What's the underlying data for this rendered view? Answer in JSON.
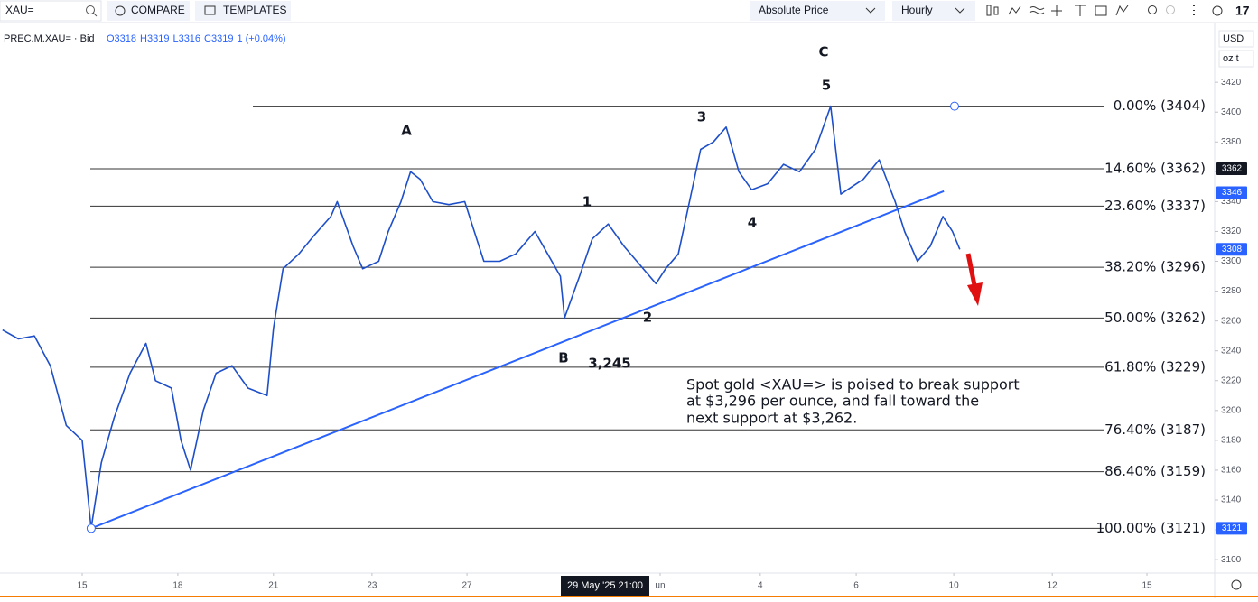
{
  "toolbar": {
    "symbol": "XAU=",
    "compare": "COMPARE",
    "templates": "TEMPLATES",
    "price_mode": "Absolute Price",
    "interval": "Hourly"
  },
  "chart_data": {
    "type": "line",
    "legend": {
      "name": "PREC.M.XAU= · Bid",
      "ohlc": [
        "O3318",
        "H3319",
        "L3316",
        "C3319",
        "1 (+0.04%)"
      ]
    },
    "currency": "USD",
    "unit": "oz t",
    "x": [
      -2.5,
      -2.0,
      -1.5,
      -1.0,
      -0.5,
      0.0,
      0.28,
      0.6,
      1.0,
      1.5,
      2.0,
      2.3,
      2.8,
      3.1,
      3.4,
      3.8,
      4.2,
      4.7,
      5.2,
      5.8,
      6.0,
      6.3,
      6.8,
      7.3,
      7.8,
      8.0,
      8.5,
      8.8,
      9.3,
      9.6,
      10.0,
      10.3,
      10.6,
      11.0,
      11.5,
      12.0,
      12.3,
      12.6,
      13.1,
      13.6,
      14.2,
      14.6,
      15.0,
      15.13,
      15.6,
      16.0,
      16.5,
      17.0,
      17.4,
      18.0,
      18.3,
      18.7,
      19.0,
      19.4,
      19.8,
      20.2,
      20.6,
      21.0,
      21.5,
      22.0,
      22.5,
      23.0,
      23.48,
      23.8,
      24.5,
      25.0,
      25.5,
      25.8,
      26.2,
      26.6,
      27.0,
      27.3,
      27.53
    ],
    "series": [
      {
        "name": "PREC.M.XAU= · Bid",
        "color": "#1e4fc9",
        "values": [
          3254,
          3248,
          3250,
          3230,
          3190,
          3180,
          3121,
          3165,
          3195,
          3225,
          3245,
          3220,
          3215,
          3180,
          3160,
          3200,
          3225,
          3230,
          3215,
          3210,
          3255,
          3295,
          3305,
          3318,
          3330,
          3340,
          3310,
          3295,
          3300,
          3320,
          3340,
          3360,
          3355,
          3340,
          3338,
          3340,
          3320,
          3300,
          3300,
          3305,
          3320,
          3305,
          3290,
          3262,
          3290,
          3315,
          3325,
          3310,
          3300,
          3285,
          3295,
          3305,
          3335,
          3375,
          3380,
          3390,
          3360,
          3348,
          3352,
          3365,
          3360,
          3375,
          3404,
          3345,
          3355,
          3368,
          3340,
          3320,
          3300,
          3310,
          3330,
          3320,
          3308
        ]
      }
    ],
    "xlim": [
      -2.578,
      35.524
    ],
    "xticks": [
      {
        "value": 0,
        "label": "15"
      },
      {
        "value": 3,
        "label": "18"
      },
      {
        "value": 6,
        "label": "21"
      },
      {
        "value": 9.09,
        "label": "23"
      },
      {
        "value": 12.07,
        "label": "27"
      },
      {
        "value": 18.13,
        "label": "un"
      },
      {
        "value": 21.27,
        "label": "4"
      },
      {
        "value": 24.28,
        "label": "6"
      },
      {
        "value": 27.34,
        "label": "10"
      },
      {
        "value": 30.43,
        "label": "12"
      },
      {
        "value": 33.4,
        "label": "15"
      }
    ],
    "crosshair_label": "29 May '25 21:00",
    "ylim": [
      3091,
      3457
    ],
    "yticks": [
      3100,
      3120,
      3140,
      3160,
      3180,
      3200,
      3220,
      3240,
      3260,
      3280,
      3300,
      3320,
      3340,
      3360,
      3380,
      3400,
      3420
    ],
    "price_tags": [
      3362,
      3346,
      3308,
      3121
    ],
    "price_tag_colors": [
      "#131722",
      "#2962ff",
      "#2962ff",
      "#2962ff"
    ],
    "fib_levels": [
      {
        "value": 3404,
        "label": "0.00% (3404)"
      },
      {
        "value": 3362,
        "label": "14.60% (3362)"
      },
      {
        "value": 3337,
        "label": "23.60% (3337)"
      },
      {
        "value": 3296,
        "label": "38.20% (3296)"
      },
      {
        "value": 3262,
        "label": "50.00% (3262)"
      },
      {
        "value": 3229,
        "label": "61.80% (3229)"
      },
      {
        "value": 3187,
        "label": "76.40% (3187)"
      },
      {
        "value": 3159,
        "label": "86.40% (3159)"
      },
      {
        "value": 3121,
        "label": "100.00% (3121)"
      }
    ],
    "trendline": {
      "x": [
        0.28,
        27.03
      ],
      "values": [
        3121,
        3347
      ],
      "color": "#2962ff"
    },
    "wave_labels": {
      "a": "A",
      "b": "B",
      "c": "C",
      "w1": "1",
      "w2": "2",
      "w3": "3",
      "w4": "4",
      "w5": "5",
      "low": "3,245"
    },
    "annotation": [
      "Spot gold <XAU=> is poised to break support",
      "at $3,296 per ounce, and fall toward the",
      "next support at $3,262."
    ]
  }
}
